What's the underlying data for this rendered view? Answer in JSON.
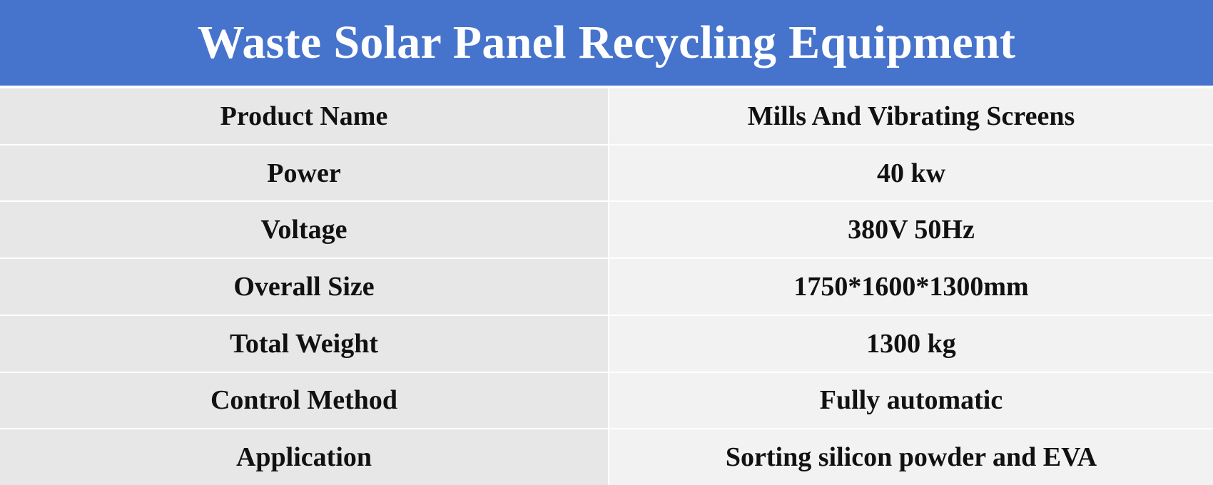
{
  "title": "Waste Solar Panel Recycling Equipment",
  "colors": {
    "header_bg": "#4674cc",
    "header_text": "#ffffff",
    "label_cell_bg": "#e7e7e7",
    "value_cell_bg": "#f2f2f2",
    "text": "#111111"
  },
  "specs": [
    {
      "label": "Product Name",
      "value": "Mills And Vibrating Screens"
    },
    {
      "label": "Power",
      "value": "40 kw"
    },
    {
      "label": "Voltage",
      "value": "380V 50Hz"
    },
    {
      "label": "Overall Size",
      "value": "1750*1600*1300mm"
    },
    {
      "label": "Total Weight",
      "value": "1300 kg"
    },
    {
      "label": "Control Method",
      "value": "Fully automatic"
    },
    {
      "label": "Application",
      "value": "Sorting silicon powder and EVA"
    }
  ]
}
